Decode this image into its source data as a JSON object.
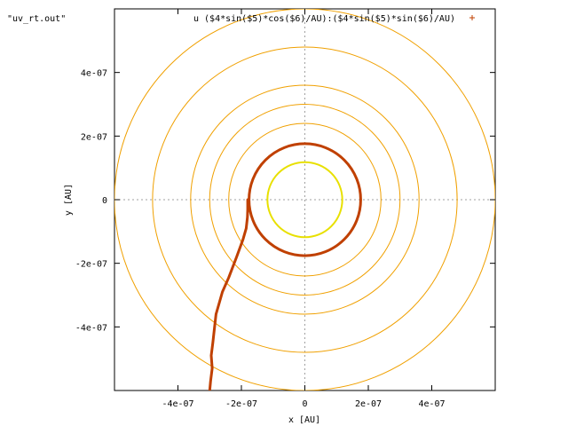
{
  "chart_data": {
    "type": "line",
    "title_left": "\"uv_rt.out\"",
    "legend_entry": "u ($4*sin($5)*cos($6)/AU):($4*sin($5)*sin($6)/AU)",
    "xlabel": "x [AU]",
    "ylabel": "y [AU]",
    "xlim": [
      -6e-07,
      6e-07
    ],
    "ylim": [
      -6e-07,
      6e-07
    ],
    "x_ticks": [
      -4e-07,
      -2e-07,
      0,
      2e-07,
      4e-07
    ],
    "x_tick_labels": [
      "-4e-07",
      "-2e-07",
      "0",
      "2e-07",
      "4e-07"
    ],
    "y_ticks": [
      4e-07,
      2e-07,
      0,
      -2e-07,
      -4e-07
    ],
    "y_tick_labels": [
      "4e-07",
      "2e-07",
      "0",
      "-2e-07",
      "-4e-07"
    ],
    "zero_axes": true,
    "legend_position": "top-right",
    "colors": {
      "inner": "#e8e000",
      "middle": "#c04000",
      "outer": "#f0a000",
      "marker": "#c04000"
    },
    "series": [
      {
        "role": "inner_circle",
        "shape": "circle",
        "cx": 0,
        "cy": 0,
        "r": 1.18e-07,
        "color": "#e8e000",
        "stroke_width": 2
      },
      {
        "role": "middle_circle",
        "shape": "circle",
        "cx": 0,
        "cy": 0,
        "r": 1.76e-07,
        "color": "#c04000",
        "stroke_width": 3
      },
      {
        "role": "outer_ring",
        "shape": "circle",
        "cx": 0,
        "cy": 0,
        "r": 2.4e-07,
        "color": "#f0a000",
        "stroke_width": 1
      },
      {
        "role": "outer_ring",
        "shape": "circle",
        "cx": 0,
        "cy": 0,
        "r": 3e-07,
        "color": "#f0a000",
        "stroke_width": 1
      },
      {
        "role": "outer_ring",
        "shape": "circle",
        "cx": 0,
        "cy": 0,
        "r": 3.6e-07,
        "color": "#f0a000",
        "stroke_width": 1
      },
      {
        "role": "outer_ring",
        "shape": "circle",
        "cx": 0,
        "cy": 0,
        "r": 4.8e-07,
        "color": "#f0a000",
        "stroke_width": 1
      },
      {
        "role": "outer_ring",
        "shape": "circle",
        "cx": 0,
        "cy": 0,
        "r": 6e-07,
        "color": "#f0a000",
        "stroke_width": 1
      },
      {
        "role": "track",
        "shape": "polyline",
        "color": "#c04000",
        "stroke_width": 3,
        "x": [
          -1.8e-07,
          -1.8e-07,
          -1.8e-07,
          -1.81e-07,
          -1.85e-07,
          -1.95e-07,
          -2.15e-07,
          -2.4e-07,
          -2.6e-07,
          -2.7e-07,
          -2.8e-07,
          -2.85e-07,
          -2.9e-07,
          -2.95e-07,
          -2.92e-07,
          -2.97e-07,
          -3e-07
        ],
        "y": [
          0,
          -1e-08,
          -3e-08,
          -5.5e-08,
          -9e-08,
          -1.25e-07,
          -1.8e-07,
          -2.45e-07,
          -2.9e-07,
          -3.25e-07,
          -3.6e-07,
          -4.05e-07,
          -4.5e-07,
          -4.9e-07,
          -5.3e-07,
          -5.7e-07,
          -6e-07
        ]
      }
    ]
  }
}
